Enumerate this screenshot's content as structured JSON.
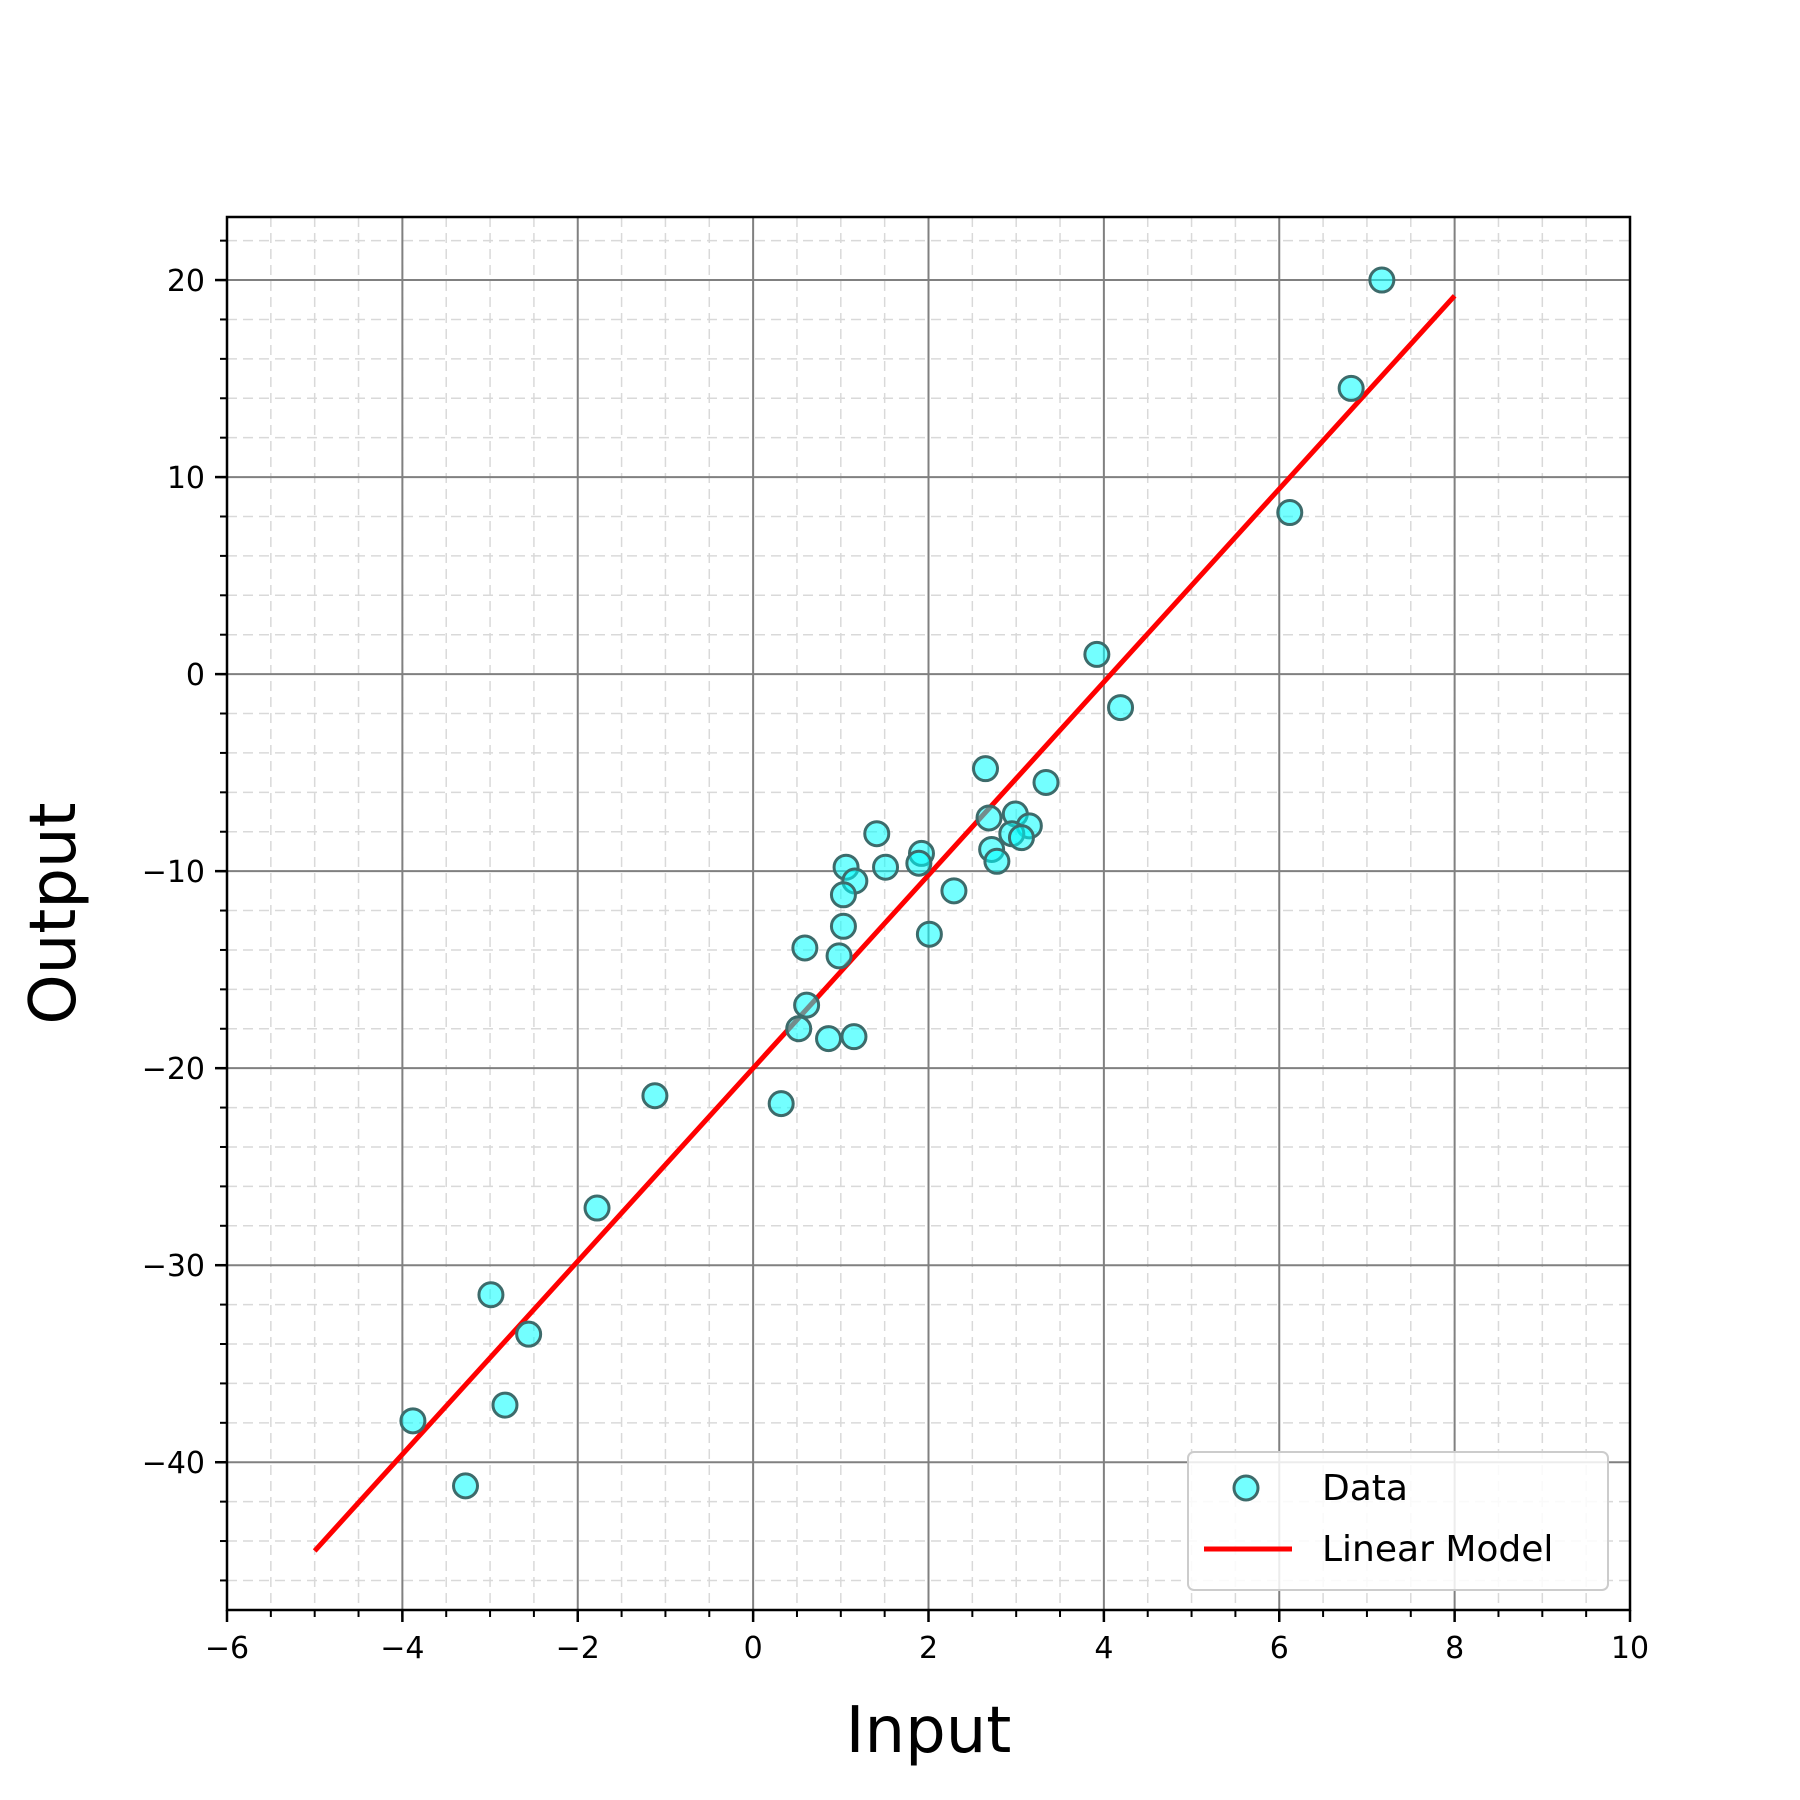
{
  "chart_data": {
    "type": "scatter",
    "xlabel": "Input",
    "ylabel": "Output",
    "xlim": [
      -6,
      10
    ],
    "ylim": [
      -47.5,
      23.2
    ],
    "x_ticks": [
      -6,
      -4,
      -2,
      0,
      2,
      4,
      6,
      8,
      10
    ],
    "y_ticks": [
      -40,
      -30,
      -20,
      -10,
      0,
      10,
      20
    ],
    "grid": true,
    "minor_grid": true,
    "legend_position": "lower-right",
    "series": [
      {
        "name": "Data",
        "kind": "scatter",
        "color": "#00ffff",
        "points": [
          [
            7.17,
            20.0
          ],
          [
            6.82,
            14.5
          ],
          [
            6.12,
            8.2
          ],
          [
            3.92,
            1.0
          ],
          [
            4.19,
            -1.7
          ],
          [
            2.65,
            -4.8
          ],
          [
            3.34,
            -5.5
          ],
          [
            2.69,
            -7.3
          ],
          [
            2.99,
            -7.1
          ],
          [
            3.15,
            -7.7
          ],
          [
            2.95,
            -8.1
          ],
          [
            3.06,
            -8.3
          ],
          [
            1.41,
            -8.1
          ],
          [
            1.92,
            -9.1
          ],
          [
            1.89,
            -9.6
          ],
          [
            2.72,
            -8.9
          ],
          [
            2.78,
            -9.5
          ],
          [
            1.06,
            -9.8
          ],
          [
            1.51,
            -9.8
          ],
          [
            1.16,
            -10.5
          ],
          [
            1.03,
            -11.2
          ],
          [
            2.29,
            -11.0
          ],
          [
            1.03,
            -12.8
          ],
          [
            2.01,
            -13.2
          ],
          [
            0.59,
            -13.9
          ],
          [
            0.98,
            -14.3
          ],
          [
            0.61,
            -16.8
          ],
          [
            0.52,
            -18.0
          ],
          [
            0.86,
            -18.5
          ],
          [
            1.15,
            -18.4
          ],
          [
            -1.12,
            -21.4
          ],
          [
            0.32,
            -21.8
          ],
          [
            -1.78,
            -27.1
          ],
          [
            -2.99,
            -31.5
          ],
          [
            -2.56,
            -33.5
          ],
          [
            -2.83,
            -37.1
          ],
          [
            -3.88,
            -37.9
          ],
          [
            -3.28,
            -41.2
          ]
        ]
      },
      {
        "name": "Linear Model",
        "kind": "line",
        "color": "#ff0000",
        "points": [
          [
            -5,
            -44.5
          ],
          [
            8,
            19.2
          ]
        ]
      }
    ]
  }
}
